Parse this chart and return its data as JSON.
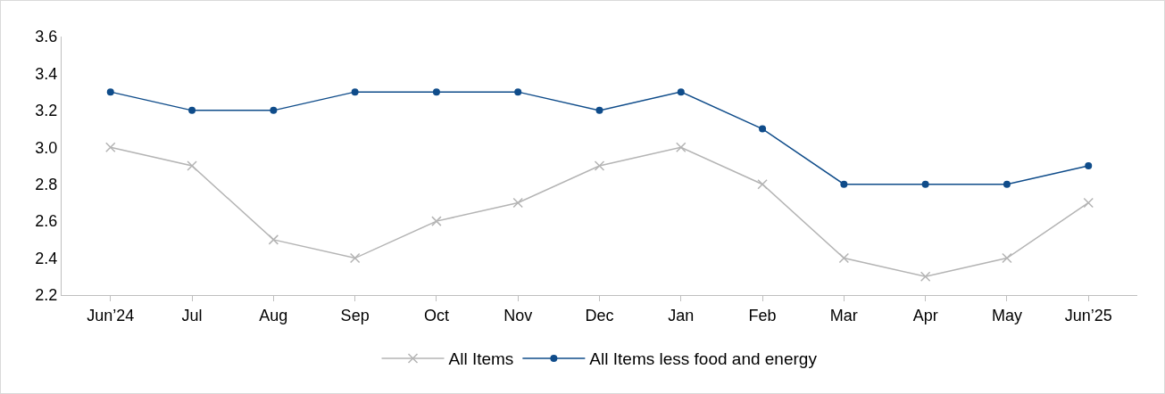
{
  "chart_data": {
    "type": "line",
    "categories": [
      "Jun’24",
      "Jul",
      "Aug",
      "Sep",
      "Oct",
      "Nov",
      "Dec",
      "Jan",
      "Feb",
      "Mar",
      "Apr",
      "May",
      "Jun’25"
    ],
    "series": [
      {
        "name": "All Items",
        "color": "#b4b4b4",
        "marker": "cross",
        "values": [
          3.0,
          2.9,
          2.5,
          2.4,
          2.6,
          2.7,
          2.9,
          3.0,
          2.8,
          2.4,
          2.3,
          2.4,
          2.7
        ]
      },
      {
        "name": "All Items less food and energy",
        "color": "#0f4c8a",
        "marker": "circle",
        "values": [
          3.3,
          3.2,
          3.2,
          3.3,
          3.3,
          3.3,
          3.2,
          3.3,
          3.1,
          2.8,
          2.8,
          2.8,
          2.9
        ]
      }
    ],
    "ylim": [
      2.2,
      3.6
    ],
    "yticks": [
      2.2,
      2.4,
      2.6,
      2.8,
      {
        "value": 3,
        "label": "3.0"
      },
      3.2,
      3.4,
      3.6
    ],
    "grid": false,
    "legend": "bottom",
    "line_style": "solid"
  }
}
